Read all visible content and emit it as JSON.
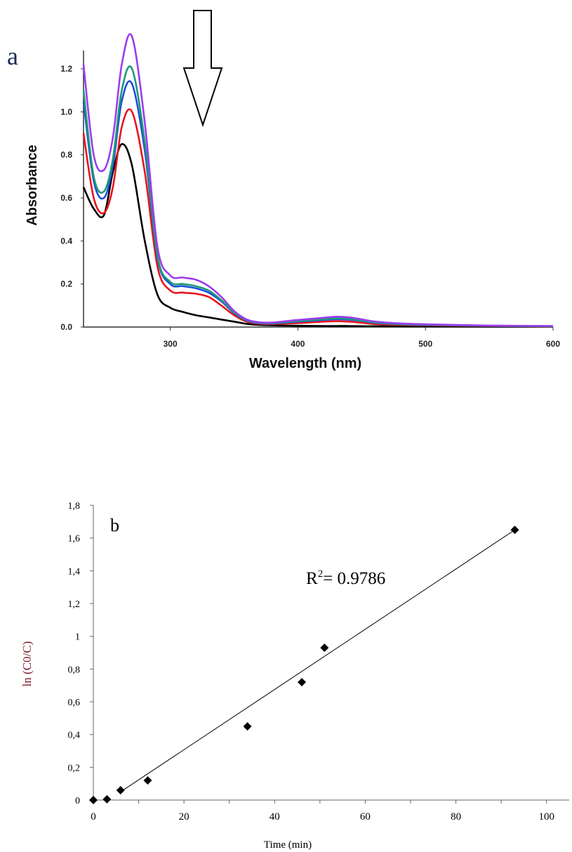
{
  "colors": {
    "panel_a_series": [
      "#000000",
      "#e8151b",
      "#1d4de0",
      "#1f9a74",
      "#9b3cf0"
    ],
    "panel_b_marker": "#000000",
    "panel_b_line": "#000000",
    "panel_b_ylabel": "#7a1a2a"
  },
  "chart_data": [
    {
      "type": "line",
      "panel_label": "a",
      "xlabel": "Wavelength (nm)",
      "ylabel": "Absorbance",
      "xlim": [
        232,
        600
      ],
      "ylim": [
        0,
        1.35
      ],
      "x_ticks": [
        300,
        400,
        500,
        600
      ],
      "y_ticks": [
        0.0,
        0.2,
        0.4,
        0.6,
        0.8,
        1.0,
        1.2
      ],
      "x_tick_labels": [
        "300",
        "400",
        "500",
        "600"
      ],
      "y_tick_labels": [
        "0.0",
        "0.2",
        "0.4",
        "0.6",
        "0.8",
        "1.0",
        "1.2"
      ],
      "legend": "none",
      "grid": false,
      "annotation": "downward arrow indicating decreasing absorbance over time",
      "x": [
        232,
        240,
        248,
        255,
        262,
        270,
        280,
        290,
        300,
        310,
        320,
        330,
        340,
        350,
        360,
        370,
        380,
        400,
        420,
        430,
        440,
        450,
        460,
        480,
        500,
        550,
        600
      ],
      "series": [
        {
          "values": [
            0.65,
            0.55,
            0.52,
            0.72,
            0.85,
            0.75,
            0.4,
            0.15,
            0.09,
            0.07,
            0.055,
            0.045,
            0.035,
            0.025,
            0.015,
            0.01,
            0.008,
            0.006,
            0.005,
            0.005,
            0.005,
            0.004,
            0.004,
            0.003,
            0.003,
            0.002,
            0.002
          ]
        },
        {
          "values": [
            0.9,
            0.6,
            0.53,
            0.65,
            0.93,
            1.0,
            0.72,
            0.28,
            0.17,
            0.16,
            0.155,
            0.14,
            0.1,
            0.055,
            0.025,
            0.015,
            0.014,
            0.018,
            0.025,
            0.027,
            0.025,
            0.02,
            0.014,
            0.01,
            0.008,
            0.005,
            0.003
          ]
        },
        {
          "values": [
            1.05,
            0.68,
            0.6,
            0.75,
            1.05,
            1.13,
            0.82,
            0.32,
            0.2,
            0.19,
            0.18,
            0.16,
            0.12,
            0.065,
            0.03,
            0.018,
            0.017,
            0.025,
            0.033,
            0.036,
            0.034,
            0.028,
            0.02,
            0.013,
            0.01,
            0.006,
            0.004
          ]
        },
        {
          "values": [
            1.1,
            0.7,
            0.63,
            0.78,
            1.1,
            1.2,
            0.86,
            0.33,
            0.21,
            0.2,
            0.19,
            0.17,
            0.125,
            0.068,
            0.032,
            0.02,
            0.018,
            0.028,
            0.036,
            0.04,
            0.038,
            0.03,
            0.022,
            0.014,
            0.011,
            0.006,
            0.004
          ]
        },
        {
          "values": [
            1.22,
            0.8,
            0.73,
            0.88,
            1.22,
            1.35,
            0.95,
            0.37,
            0.24,
            0.23,
            0.22,
            0.19,
            0.14,
            0.075,
            0.035,
            0.022,
            0.021,
            0.033,
            0.043,
            0.048,
            0.045,
            0.036,
            0.026,
            0.017,
            0.013,
            0.007,
            0.005
          ]
        }
      ]
    },
    {
      "type": "scatter",
      "panel_label": "b",
      "xlabel": "Time (min)",
      "ylabel": "ln (C0/C)",
      "xlim": [
        0,
        105
      ],
      "ylim": [
        0,
        1.8
      ],
      "x_ticks": [
        0,
        20,
        40,
        60,
        80,
        100
      ],
      "y_ticks": [
        0,
        0.2,
        0.4,
        0.6,
        0.8,
        1.0,
        1.2,
        1.4,
        1.6,
        1.8
      ],
      "x_tick_labels": [
        "0",
        "20",
        "40",
        "60",
        "80",
        "100"
      ],
      "y_tick_labels": [
        "0",
        "0,2",
        "0,4",
        "0,6",
        "0,8",
        "1",
        "1,2",
        "1,4",
        "1,6",
        "1,8"
      ],
      "legend": "none",
      "grid": false,
      "annotation": {
        "prefix": "R",
        "superscript": "2",
        "suffix": "= 0.9786"
      },
      "points": {
        "x": [
          0,
          3,
          6,
          12,
          34,
          46,
          51,
          93
        ],
        "y": [
          0.0,
          0.005,
          0.06,
          0.12,
          0.45,
          0.72,
          0.93,
          1.65
        ]
      },
      "trendline": {
        "x": [
          6,
          93
        ],
        "y": [
          0.05,
          1.65
        ]
      }
    }
  ]
}
